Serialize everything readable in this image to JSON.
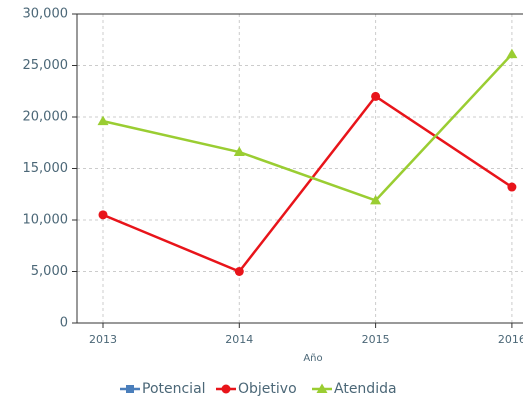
{
  "chart_data": {
    "type": "line",
    "x_label": "Año",
    "categories": [
      "2013",
      "2014",
      "2015",
      "2016"
    ],
    "series": [
      {
        "name": "Potencial",
        "color": "#4a7ebb",
        "marker": "square",
        "values": [
          null,
          null,
          null,
          null
        ]
      },
      {
        "name": "Objetivo",
        "color": "#e8141a",
        "marker": "circle",
        "values": [
          10500,
          5000,
          22000,
          13200
        ]
      },
      {
        "name": "Atendida",
        "color": "#9acd32",
        "marker": "triangle",
        "values": [
          19600,
          16600,
          11900,
          26100
        ]
      }
    ],
    "ylim": [
      0,
      30000
    ],
    "yticks": [
      0,
      {
        "value": 5000,
        "label": "5,000"
      },
      {
        "value": 10000,
        "label": "10,000"
      },
      {
        "value": 15000,
        "label": "15,000"
      },
      {
        "value": 20000,
        "label": "20,000"
      },
      {
        "value": 25000,
        "label": "25,000"
      },
      {
        "value": 30000,
        "label": "30,000"
      }
    ],
    "grid": true,
    "legend": "bottom"
  }
}
